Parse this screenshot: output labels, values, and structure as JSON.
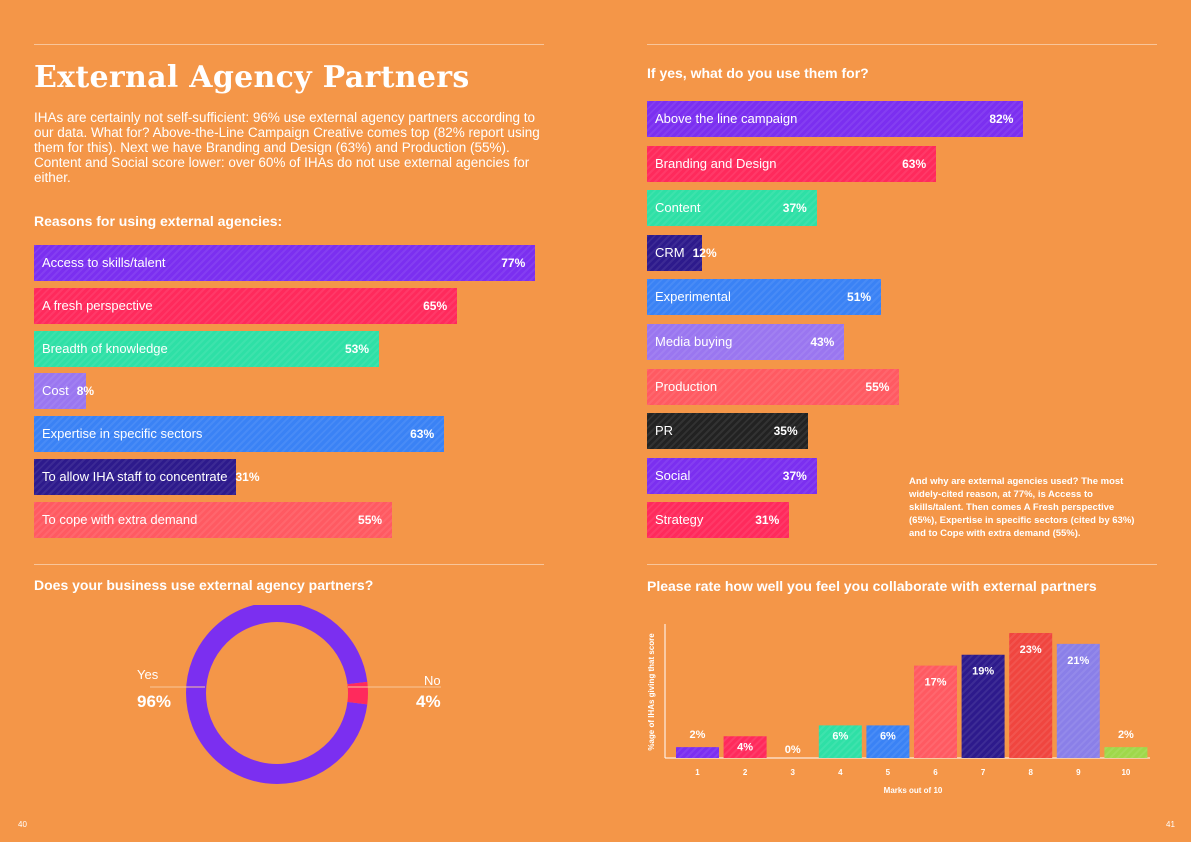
{
  "left": {
    "title": "External Agency Partners",
    "intro": "IHAs are certainly not self-sufficient: 96% use external agency partners according to our data. What for? Above-the-Line Campaign Creative comes top (82% report using them for this). Next we have Branding and Design (63%) and Production (55%). Content and Social score lower: over 60% of IHAs do not use external agencies for either.",
    "reasons_heading": "Reasons for using external agencies:",
    "donut_heading": "Does your business use external agency partners?",
    "page_number": "40"
  },
  "right": {
    "uses_heading": "If yes, what do you use them for?",
    "note": "And why are external agencies used? The most widely-cited reason, at 77%, is Access to skills/talent. Then comes A Fresh perspective (65%), Expertise in specific sectors (cited by 63%) and to Cope with extra demand (55%).",
    "rating_heading": "Please rate how well you feel you collaborate with external partners",
    "page_number": "41"
  },
  "colors": {
    "background": "#f49648",
    "purple": "#7b2ff0",
    "red": "#ff2a5c",
    "teal": "#2ee0a6",
    "lavender": "#9a76f0",
    "blue": "#3a82f5",
    "navy": "#2d1a8c",
    "salmon": "#ff5a62",
    "black": "#222222"
  },
  "chart_data": [
    {
      "type": "bar",
      "orientation": "horizontal",
      "title": "Reasons for using external agencies:",
      "categories": [
        "Access to skills/talent",
        "A fresh perspective",
        "Breadth of knowledge",
        "Cost",
        "Expertise in specific sectors",
        "To allow IHA staff to concentrate",
        "To cope with extra demand"
      ],
      "values": [
        77,
        65,
        53,
        8,
        63,
        31,
        55
      ],
      "labels": [
        "77%",
        "65%",
        "53%",
        "8%",
        "63%",
        "31%",
        "55%"
      ],
      "colors": [
        "#7b2ff0",
        "#ff2a5c",
        "#2ee0a6",
        "#9a76f0",
        "#3a82f5",
        "#2d1a8c",
        "#ff5a62"
      ]
    },
    {
      "type": "bar",
      "orientation": "horizontal",
      "title": "If yes, what do you use them for?",
      "categories": [
        "Above the line campaign",
        "Branding and Design",
        "Content",
        "CRM",
        "Experimental",
        "Media buying",
        "Production",
        "PR",
        "Social",
        "Strategy"
      ],
      "values": [
        82,
        63,
        37,
        12,
        51,
        43,
        55,
        35,
        37,
        31
      ],
      "labels": [
        "82%",
        "63%",
        "37%",
        "12%",
        "51%",
        "43%",
        "55%",
        "35%",
        "37%",
        "31%"
      ],
      "colors": [
        "#7b2ff0",
        "#ff2a5c",
        "#2ee0a6",
        "#2d1a8c",
        "#3a82f5",
        "#9a76f0",
        "#ff5a62",
        "#222222",
        "#7b2ff0",
        "#ff2a5c"
      ]
    },
    {
      "type": "pie",
      "title": "Does your business use external agency partners?",
      "categories": [
        "Yes",
        "No"
      ],
      "values": [
        96,
        4
      ],
      "labels": [
        "96%",
        "4%"
      ],
      "colors": [
        "#7b2ff0",
        "#ff2a5c"
      ]
    },
    {
      "type": "bar",
      "title": "Please rate how well you feel you collaborate with external partners",
      "xlabel": "Marks out of 10",
      "ylabel": "%age of IHAs giving that score",
      "categories": [
        "1",
        "2",
        "3",
        "4",
        "5",
        "6",
        "7",
        "8",
        "9",
        "10"
      ],
      "values": [
        2,
        4,
        0,
        6,
        6,
        17,
        19,
        23,
        21,
        2
      ],
      "labels": [
        "2%",
        "4%",
        "0%",
        "6%",
        "6%",
        "17%",
        "19%",
        "23%",
        "21%",
        "2%"
      ],
      "colors": [
        "#7b2ff0",
        "#ff2a5c",
        "#f49648",
        "#2ee0a6",
        "#3a82f5",
        "#ff5a62",
        "#2d1a8c",
        "#f0453f",
        "#8a7fe8",
        "#9fd84a"
      ],
      "ylim": [
        0,
        23
      ]
    }
  ]
}
